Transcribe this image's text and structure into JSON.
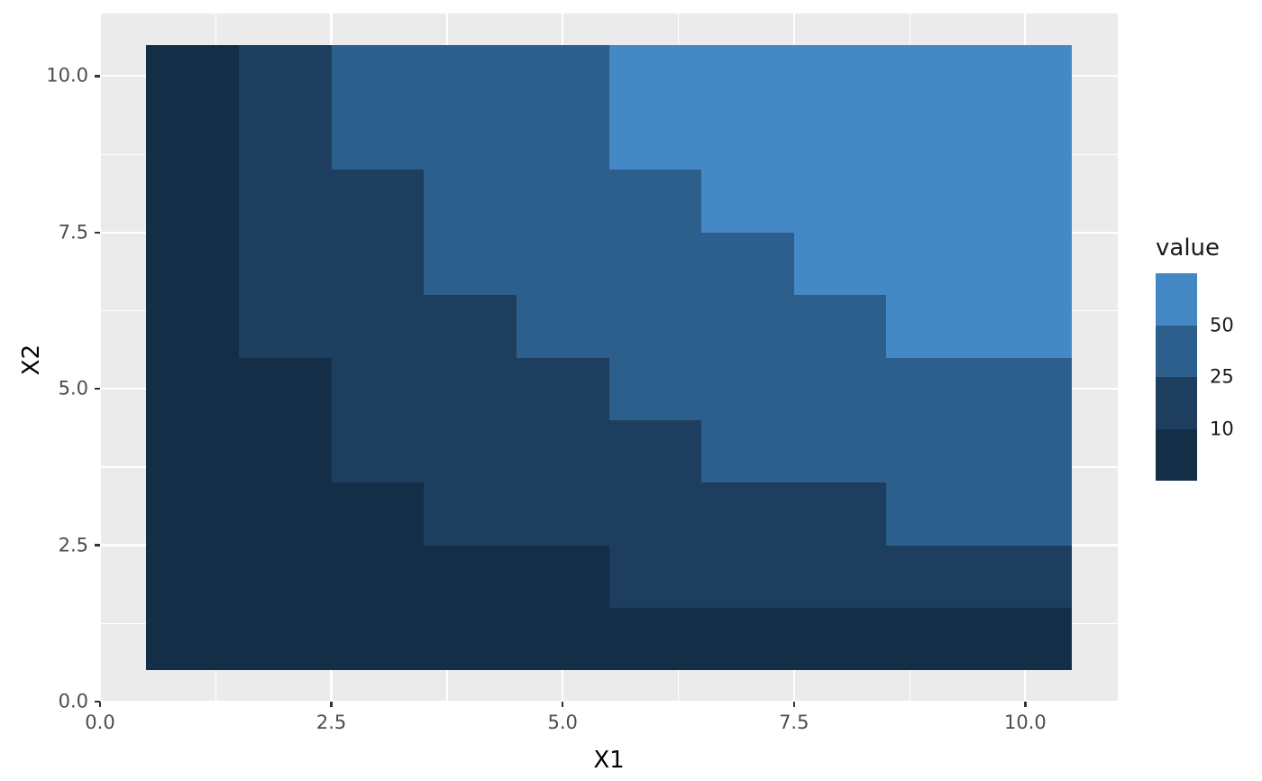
{
  "figure": {
    "background": "#FFFFFF",
    "panel_background": "#EBEBEB",
    "gridline_color": "#FFFFFF",
    "tick_mark_color": "#333333",
    "tick_label_color": "#4D4D4D",
    "axis_title_color": "#000000",
    "legend_text_color": "#1A1A1A"
  },
  "chart_data": {
    "type": "heatmap",
    "title": "",
    "xlabel": "X1",
    "ylabel": "X2",
    "x": [
      1,
      2,
      3,
      4,
      5,
      6,
      7,
      8,
      9,
      10
    ],
    "y": [
      1,
      2,
      3,
      4,
      5,
      6,
      7,
      8,
      9,
      10
    ],
    "values": [
      [
        1,
        2,
        3,
        4,
        5,
        6,
        7,
        8,
        9,
        10
      ],
      [
        2,
        4,
        6,
        8,
        10,
        12,
        14,
        16,
        18,
        20
      ],
      [
        3,
        6,
        9,
        12,
        15,
        18,
        21,
        24,
        27,
        30
      ],
      [
        4,
        8,
        12,
        16,
        20,
        24,
        28,
        32,
        36,
        40
      ],
      [
        5,
        10,
        15,
        20,
        25,
        30,
        35,
        40,
        45,
        50
      ],
      [
        6,
        12,
        18,
        24,
        30,
        36,
        42,
        48,
        54,
        60
      ],
      [
        7,
        14,
        21,
        28,
        35,
        42,
        49,
        56,
        63,
        70
      ],
      [
        8,
        16,
        24,
        32,
        40,
        48,
        56,
        64,
        72,
        80
      ],
      [
        9,
        18,
        27,
        36,
        45,
        54,
        63,
        72,
        81,
        90
      ],
      [
        10,
        20,
        30,
        40,
        50,
        60,
        70,
        80,
        90,
        100
      ]
    ],
    "bins": {
      "breaks": [
        10,
        25,
        50
      ],
      "colors": [
        "#152E47",
        "#1D3E5E",
        "#2D5F8C",
        "#4489C6"
      ]
    },
    "tile_extent": {
      "x": [
        0.5,
        10.5
      ],
      "y": [
        0.5,
        10.5
      ]
    },
    "xlim": [
      0,
      11
    ],
    "ylim": [
      0,
      11
    ],
    "x_ticks": {
      "values": [
        0,
        2.5,
        5,
        7.5,
        10
      ],
      "labels": [
        "0.0",
        "2.5",
        "5.0",
        "7.5",
        "10.0"
      ]
    },
    "y_ticks": {
      "values": [
        0,
        2.5,
        5,
        7.5,
        10
      ],
      "labels": [
        "0.0",
        "2.5",
        "5.0",
        "7.5",
        "10.0"
      ]
    },
    "minor_gridlines": [
      1.25,
      3.75,
      6.25,
      8.75
    ],
    "grid": true,
    "legend": {
      "title": "value",
      "position": "right",
      "labels": [
        "50",
        "25",
        "10"
      ],
      "label_values": [
        50,
        25,
        10
      ]
    }
  }
}
